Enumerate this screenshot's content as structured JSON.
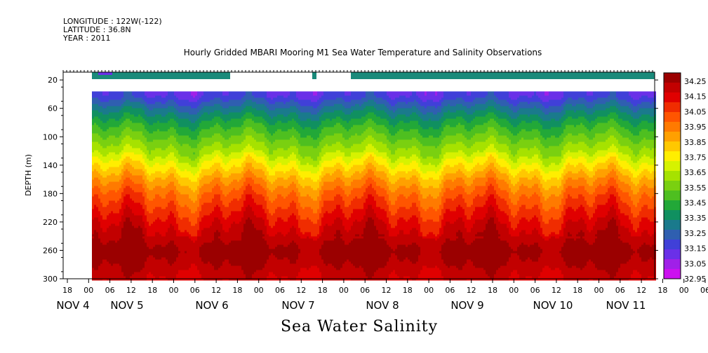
{
  "header": {
    "longitude": "LONGITUDE : 122W(-122)",
    "latitude": "LATITUDE : 36.8N",
    "year": "YEAR : 2011"
  },
  "chart_data": {
    "type": "heatmap",
    "title": "Hourly Gridded MBARI Mooring M1 Sea Water Temperature and Salinity Observations",
    "xlabel": "Sea Water Salinity",
    "ylabel": "DEPTH (m)",
    "y_ticks": [
      20,
      60,
      100,
      140,
      180,
      220,
      260,
      300
    ],
    "ylim": [
      300,
      0
    ],
    "x_hour_ticks": [
      "18",
      "00",
      "06",
      "12",
      "18",
      "00",
      "06",
      "12",
      "18",
      "00",
      "06",
      "12",
      "18",
      "00",
      "06",
      "12",
      "18",
      "00",
      "06",
      "12",
      "18",
      "00",
      "06",
      "12",
      "18",
      "00",
      "06",
      "12",
      "18",
      "00",
      "06",
      "12"
    ],
    "x_date_labels": [
      "NOV  4",
      "NOV  5",
      "NOV  6",
      "NOV  7",
      "NOV  8",
      "NOV  9",
      "NOV 10",
      "NOV 11"
    ],
    "colorbar": {
      "levels": [
        "34.25",
        "34.15",
        "34.05",
        "33.95",
        "33.85",
        "33.75",
        "33.65",
        "33.55",
        "33.45",
        "33.35",
        "33.25",
        "33.15",
        "33.05",
        "32.95"
      ],
      "colors": [
        "#9b0000",
        "#c20000",
        "#e00000",
        "#f02c00",
        "#ff5500",
        "#ff7a00",
        "#ffa000",
        "#ffc800",
        "#ffee00",
        "#d6f200",
        "#a6e200",
        "#7ad010",
        "#4ebf20",
        "#22a838",
        "#109060",
        "#1a7a8c",
        "#2f5fb0",
        "#4040d8",
        "#6a30e8",
        "#a020e8",
        "#cc10f0"
      ]
    },
    "depth_profile": [
      {
        "depth": 40,
        "salinity": 33.4
      },
      {
        "depth": 60,
        "salinity": 33.52
      },
      {
        "depth": 80,
        "salinity": 33.62
      },
      {
        "depth": 100,
        "salinity": 33.7
      },
      {
        "depth": 120,
        "salinity": 33.78
      },
      {
        "depth": 140,
        "salinity": 33.88
      },
      {
        "depth": 160,
        "salinity": 33.98
      },
      {
        "depth": 180,
        "salinity": 34.06
      },
      {
        "depth": 200,
        "salinity": 34.12
      },
      {
        "depth": 220,
        "salinity": 34.18
      },
      {
        "depth": 240,
        "salinity": 34.23
      },
      {
        "depth": 260,
        "salinity": 34.28
      },
      {
        "depth": 280,
        "salinity": 34.24
      },
      {
        "depth": 300,
        "salinity": 34.2
      }
    ]
  }
}
